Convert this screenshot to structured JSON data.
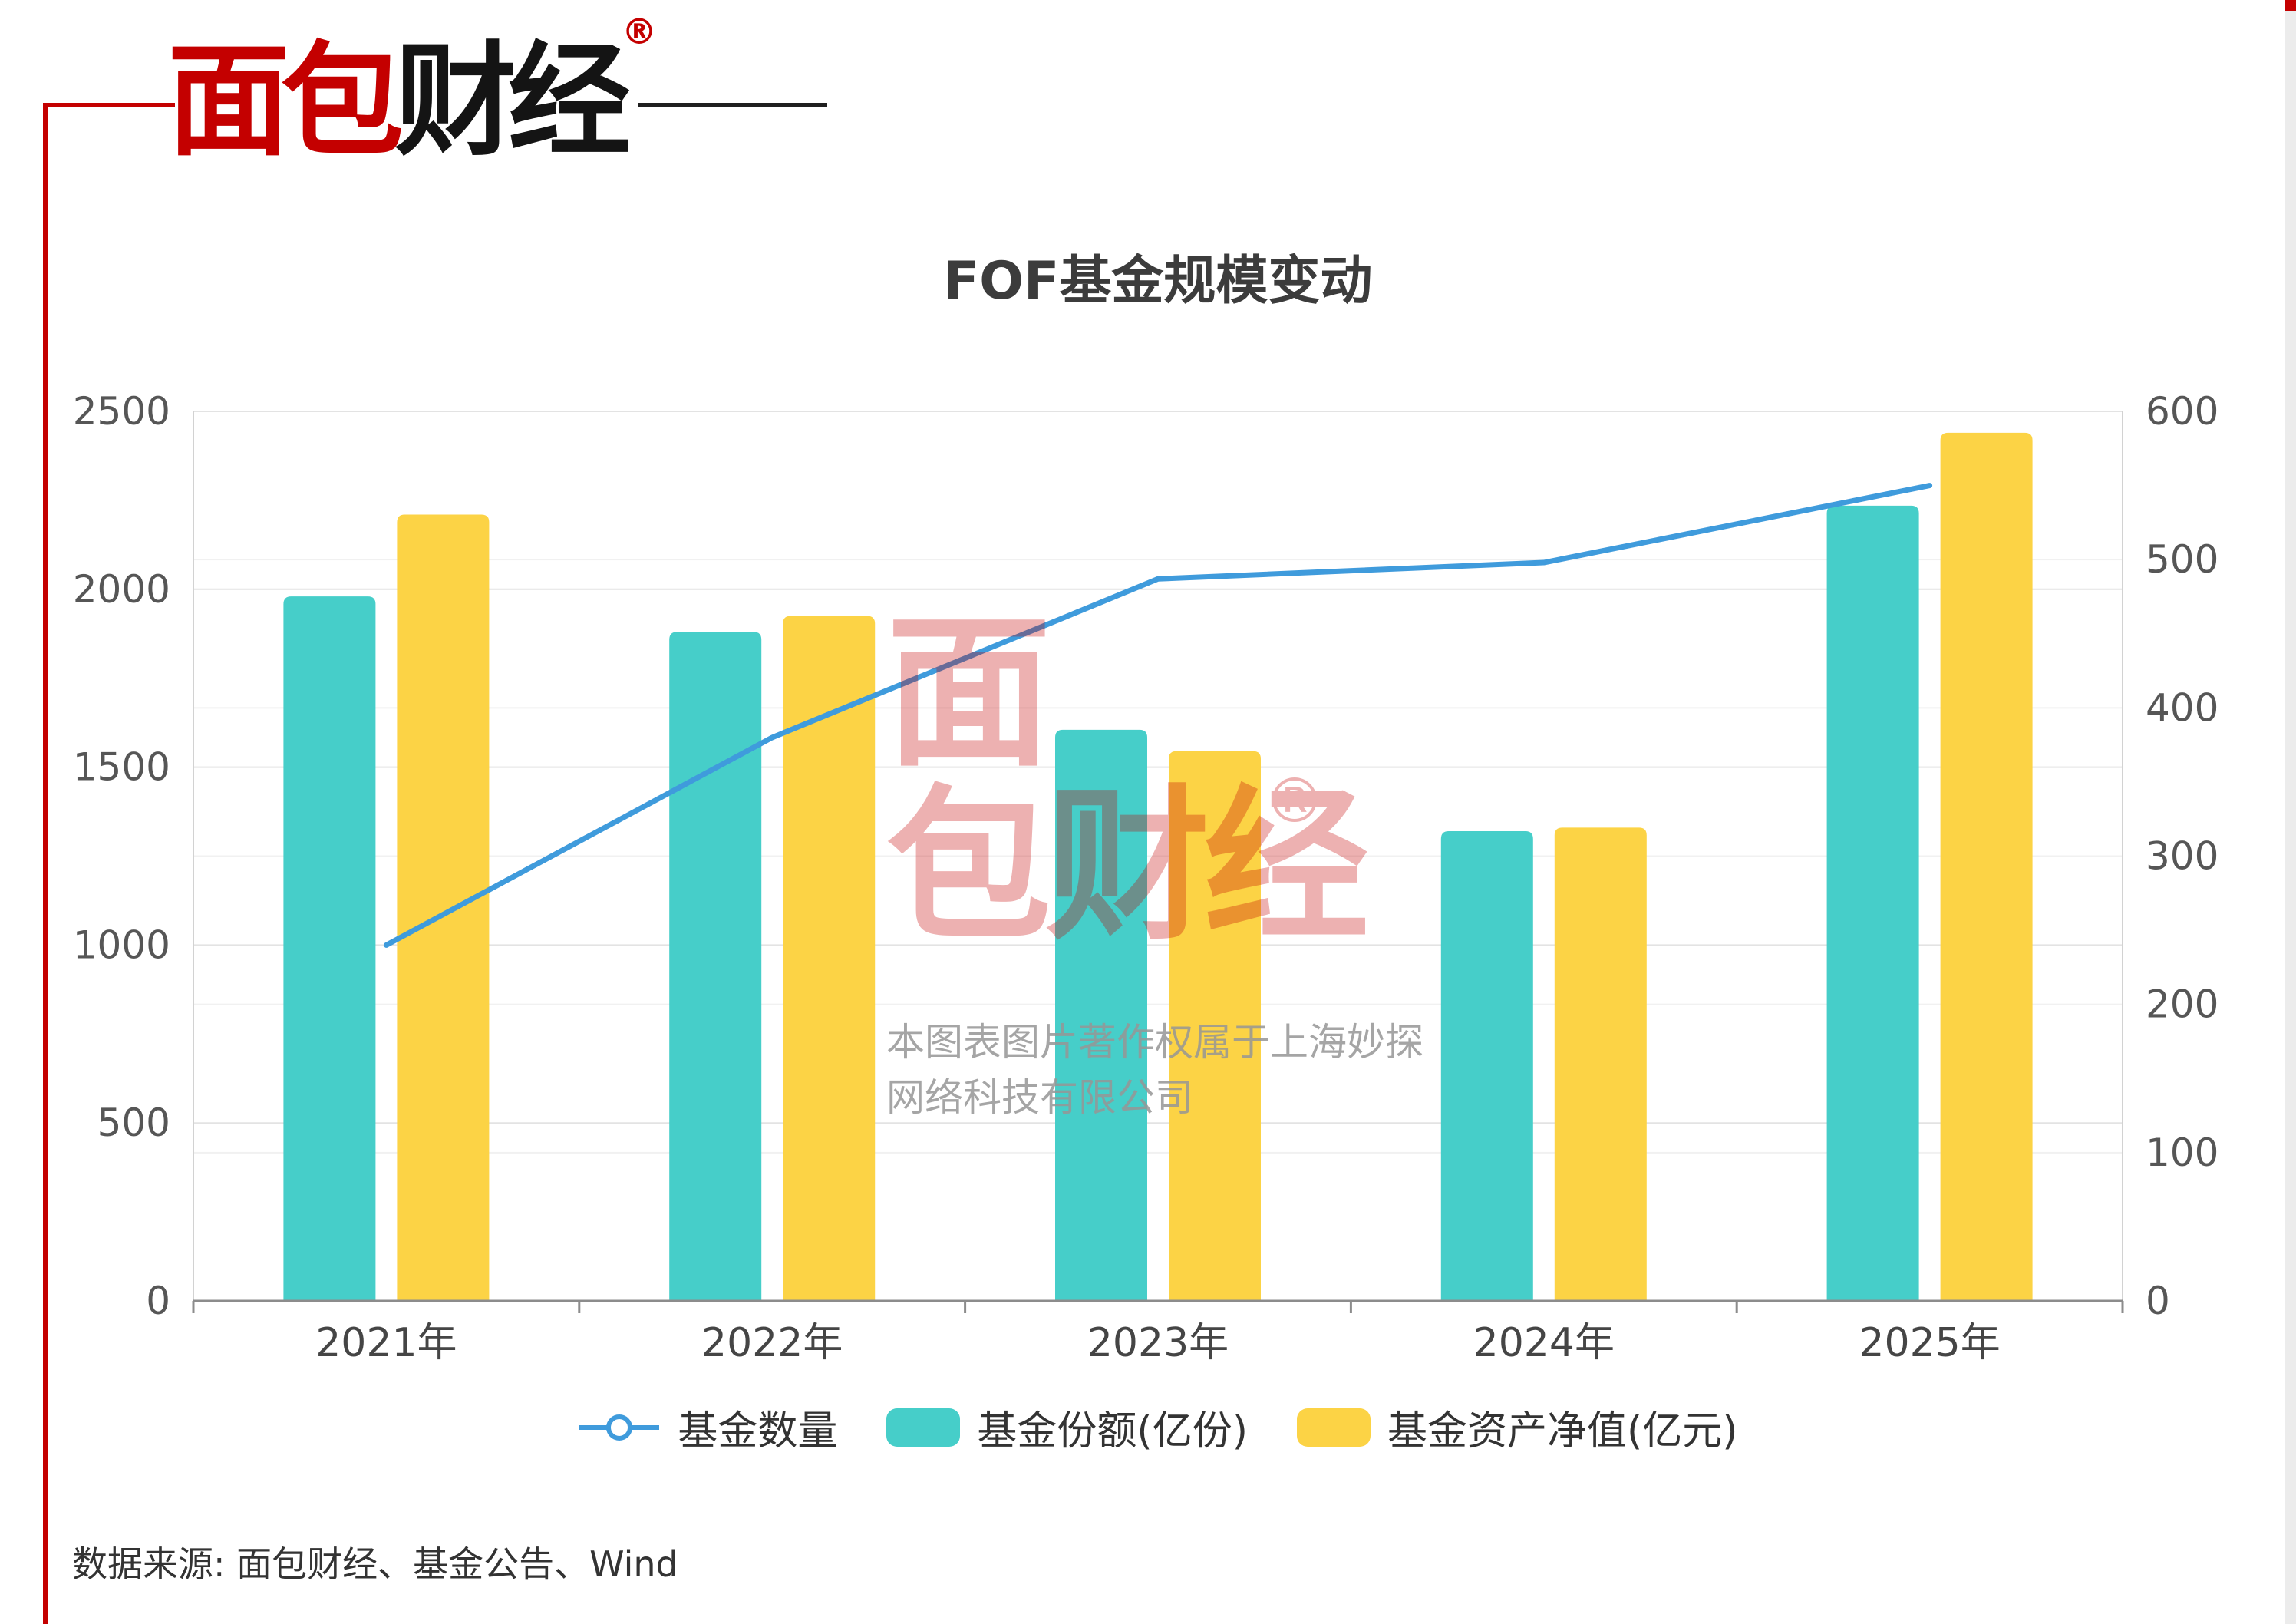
{
  "page": {
    "source_text": "数据来源: 面包财经、基金公告、Wind"
  },
  "logo": {
    "red_text": "面包",
    "black_text": "财经",
    "reg_mark": "®"
  },
  "watermark": {
    "char1": "面",
    "char2": "包",
    "char3": "财经",
    "reg_mark": "®",
    "copyright_line1": "本图表图片著作权属于上海妙探",
    "copyright_line2": "网络科技有限公司"
  },
  "chart_data": {
    "type": "combo",
    "title": "FOF基金规模变动",
    "categories": [
      "2021年",
      "2022年",
      "2023年",
      "2024年",
      "2025年"
    ],
    "series": [
      {
        "name": "基金数量",
        "type": "line",
        "axis": "right",
        "color": "#3f9bdc",
        "values": [
          240,
          380,
          487,
          498,
          550
        ]
      },
      {
        "name": "基金份额(亿份)",
        "type": "bar",
        "axis": "left",
        "color": "#46cec9",
        "values": [
          1980,
          1880,
          1605,
          1320,
          2235
        ]
      },
      {
        "name": "基金资产净值(亿元)",
        "type": "bar",
        "axis": "left",
        "color": "#fcd345",
        "values": [
          2210,
          1925,
          1545,
          1330,
          2440
        ]
      }
    ],
    "left_axis": {
      "min": 0,
      "max": 2500,
      "step": 500,
      "ticks": [
        0,
        500,
        1000,
        1500,
        2000,
        2500
      ]
    },
    "right_axis": {
      "min": 0,
      "max": 600,
      "step": 100,
      "ticks": [
        0,
        100,
        200,
        300,
        400,
        500,
        600
      ]
    },
    "grid": true,
    "legend_position": "bottom"
  },
  "colors": {
    "accent_red": "#c40000",
    "line_blue": "#3f9bdc",
    "bar_teal": "#46cec9",
    "bar_yellow": "#fcd345",
    "title_text": "#3c3c3c",
    "axis_text": "#565656"
  }
}
